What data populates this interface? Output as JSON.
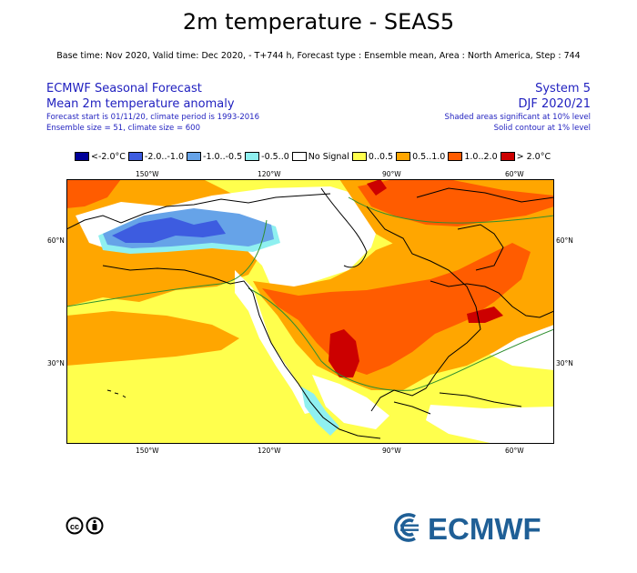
{
  "header": {
    "title": "2m temperature - SEAS5",
    "subtitle": "Base time: Nov 2020, Valid time: Dec 2020, - T+744 h, Forecast type : Ensemble mean, Area : North America, Step : 744",
    "left": {
      "line1": "ECMWF Seasonal Forecast",
      "line2": "Mean 2m temperature anomaly",
      "line3": "Forecast start is 01/11/20, climate period is 1993-2016",
      "line4": "Ensemble size = 51, climate size = 600"
    },
    "right": {
      "line1": "System 5",
      "line2": "DJF 2020/21",
      "line3": "Shaded areas significant at 10% level",
      "line4": "Solid contour at 1% level"
    }
  },
  "legend": [
    {
      "label": "<-2.0°C",
      "color": "#000099"
    },
    {
      "label": "-2.0..-1.0",
      "color": "#3d5ce0"
    },
    {
      "label": "-1.0..-0.5",
      "color": "#66a3e8"
    },
    {
      "label": "-0.5..0",
      "color": "#8ff0f0"
    },
    {
      "label": "No Signal",
      "color": "#ffffff"
    },
    {
      "label": "0..0.5",
      "color": "#ffff4d"
    },
    {
      "label": "0.5..1.0",
      "color": "#ffa600"
    },
    {
      "label": "1.0..2.0",
      "color": "#ff5c00"
    },
    {
      "label": "> 2.0°C",
      "color": "#cc0000"
    }
  ],
  "axes": {
    "lon_top": [
      "150°W",
      "120°W",
      "90°W",
      "60°W"
    ],
    "lon_bottom": [
      "150°W",
      "120°W",
      "90°W",
      "60°W"
    ],
    "lat_left": [
      "60°N",
      "30°N"
    ],
    "lat_right": [
      "60°N",
      "30°N"
    ]
  },
  "footer": {
    "logo_text": "ECMWF",
    "license_icon": "cc-by-icon"
  }
}
